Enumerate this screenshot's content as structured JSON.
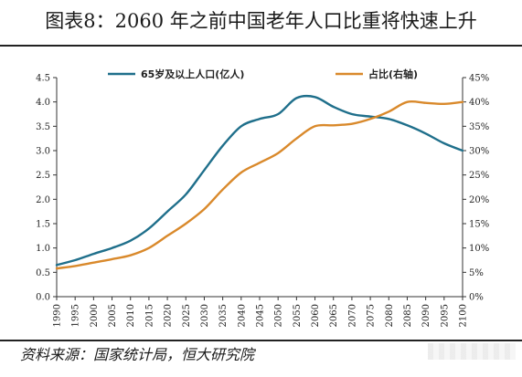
{
  "header": {
    "title": "图表8：2060 年之前中国老年人口比重将快速上升"
  },
  "footer": {
    "source": "资料来源：国家统计局，恒大研究院"
  },
  "colors": {
    "series_count": "#1f6f8b",
    "series_share": "#d9892b",
    "axis": "#333333"
  },
  "chart_data": {
    "type": "line",
    "title": "",
    "xlabel": "",
    "ylabel": "",
    "ylabel_right": "",
    "grid": false,
    "legend_position": "top",
    "x": [
      1990,
      1995,
      2000,
      2005,
      2010,
      2015,
      2020,
      2025,
      2030,
      2035,
      2040,
      2045,
      2050,
      2055,
      2060,
      2065,
      2070,
      2075,
      2080,
      2085,
      2090,
      2095,
      2100
    ],
    "x_tick_labels": [
      "1990",
      "1995",
      "2000",
      "2005",
      "2010",
      "2015",
      "2020",
      "2025",
      "2030",
      "2035",
      "2040",
      "2045",
      "2050",
      "2055",
      "2060",
      "2065",
      "2070",
      "2075",
      "2080",
      "2085",
      "2090",
      "2095",
      "2100"
    ],
    "ylim": [
      0,
      4.5
    ],
    "y_ticks": [
      0.0,
      0.5,
      1.0,
      1.5,
      2.0,
      2.5,
      3.0,
      3.5,
      4.0,
      4.5
    ],
    "y_tick_labels": [
      "0.0",
      "0.5",
      "1.0",
      "1.5",
      "2.0",
      "2.5",
      "3.0",
      "3.5",
      "4.0",
      "4.5"
    ],
    "ylim_right": [
      0,
      45
    ],
    "y_ticks_right": [
      0,
      5,
      10,
      15,
      20,
      25,
      30,
      35,
      40,
      45
    ],
    "y_tick_labels_right": [
      "0%",
      "5%",
      "10%",
      "15%",
      "20%",
      "25%",
      "30%",
      "35%",
      "40%",
      "45%"
    ],
    "series": [
      {
        "name": "65岁及以上人口(亿人)",
        "axis": "left",
        "values": [
          0.65,
          0.75,
          0.88,
          1.0,
          1.15,
          1.4,
          1.75,
          2.1,
          2.6,
          3.1,
          3.5,
          3.65,
          3.75,
          4.08,
          4.1,
          3.9,
          3.75,
          3.7,
          3.65,
          3.52,
          3.35,
          3.15,
          3.0
        ]
      },
      {
        "name": "占比(右轴)",
        "axis": "right",
        "values": [
          5.8,
          6.3,
          7.0,
          7.7,
          8.5,
          10.0,
          12.5,
          15.0,
          18.0,
          22.0,
          25.5,
          27.5,
          29.5,
          32.5,
          35.0,
          35.2,
          35.5,
          36.5,
          38.0,
          40.0,
          39.8,
          39.6,
          40.0
        ]
      }
    ]
  }
}
